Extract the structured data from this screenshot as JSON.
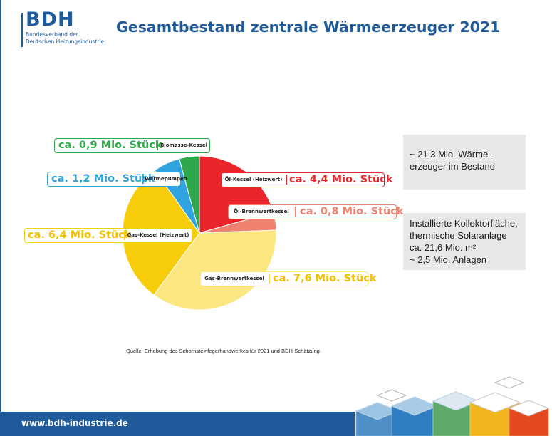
{
  "logo": {
    "mark": "BDH",
    "line1": "Bundesverband der",
    "line2": "Deutschen Heizungsindustrie"
  },
  "title": "Gesamtbestand zentrale Wärmeerzeuger 2021",
  "chart_data": {
    "type": "pie",
    "title": "Gesamtbestand zentrale Wärmeerzeuger 2021",
    "unit": "Mio. Stück",
    "slices": [
      {
        "category": "Öl-Kessel (Heizwert)",
        "value": 4.4,
        "label": "ca. 4,4 Mio. Stück",
        "color": "#e8262c"
      },
      {
        "category": "Öl-Brennwertkessel",
        "value": 0.8,
        "label": "ca. 0,8 Mio. Stück",
        "color": "#f08070"
      },
      {
        "category": "Gas-Brennwertkessel",
        "value": 7.6,
        "label": "ca. 7,6 Mio. Stück",
        "color": "#fbe680"
      },
      {
        "category": "Gas-Kessel (Heizwert)",
        "value": 6.4,
        "label": "ca. 6,4 Mio. Stück",
        "color": "#f7cc0a"
      },
      {
        "category": "Wärmepumpen",
        "value": 1.2,
        "label": "ca. 1,2 Mio. Stück",
        "color": "#2fa4de"
      },
      {
        "category": "Biomasse-Kessel",
        "value": 0.9,
        "label": "ca. 0,9 Mio. Stück",
        "color": "#2ea84a"
      }
    ],
    "start": "12 o'clock, clockwise"
  },
  "info_boxes": [
    {
      "lines": [
        "~ 21,3 Mio. Wärme-",
        "erzeuger im Bestand"
      ]
    },
    {
      "lines": [
        "Installierte Kollektorfläche,",
        "thermische Solaranlage",
        "ca. 21,6 Mio. m²",
        "~ 2,5 Mio. Anlagen"
      ]
    }
  ],
  "source": "Quelle: Erhebung des Schornsteinfegerhandwerkes für 2021 und BDH-Schätzung",
  "footer": {
    "url": "www.bdh-industrie.de"
  },
  "colors": {
    "brand": "#1f5a9a",
    "info_bg": "#e8e8e8"
  }
}
